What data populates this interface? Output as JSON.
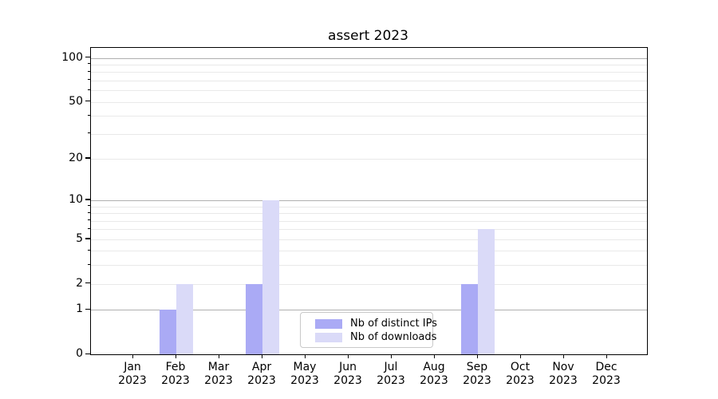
{
  "chart_data": {
    "type": "bar",
    "title": "assert 2023",
    "months": [
      "Jan",
      "Feb",
      "Mar",
      "Apr",
      "May",
      "Jun",
      "Jul",
      "Aug",
      "Sep",
      "Oct",
      "Nov",
      "Dec"
    ],
    "year": "2023",
    "series": [
      {
        "name": "Nb of distinct IPs",
        "color": "#aaaaf5",
        "values": [
          0,
          1,
          0,
          2,
          0,
          0,
          0,
          0,
          2,
          0,
          0,
          0
        ]
      },
      {
        "name": "Nb of downloads",
        "color": "#dadaf8",
        "values": [
          0,
          2,
          0,
          10,
          0,
          0,
          0,
          0,
          6,
          0,
          0,
          0
        ]
      }
    ],
    "yscale": "log1p",
    "ylim": [
      0,
      117
    ],
    "y_tick_labels": [
      0,
      1,
      2,
      5,
      10,
      20,
      50,
      100
    ],
    "y_major_gridlines": [
      1,
      10,
      100
    ],
    "y_minor_gridlines": [
      2,
      3,
      4,
      5,
      6,
      7,
      8,
      9,
      20,
      30,
      40,
      50,
      60,
      70,
      80,
      90
    ],
    "grid_color_major": "#b0b0b0",
    "grid_color_minor": "#e9e9e9",
    "legend_position": "lower-center",
    "grid": "on"
  }
}
